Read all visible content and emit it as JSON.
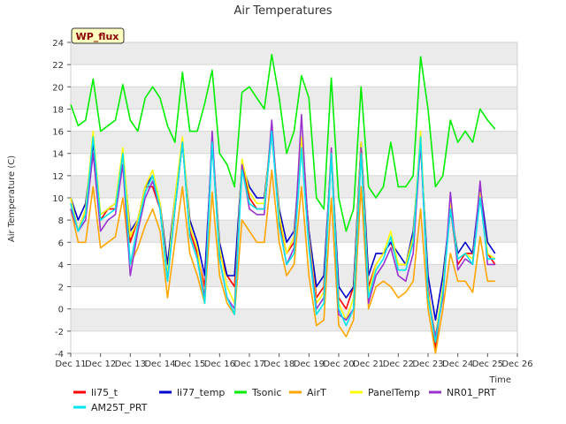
{
  "chart_data": {
    "type": "line",
    "title": "Air Temperatures",
    "xlabel": "Time",
    "ylabel": "Air Temperature (C)",
    "badge": "WP_flux",
    "ylim": [
      -4,
      24
    ],
    "yticks": [
      -4,
      -2,
      0,
      2,
      4,
      6,
      8,
      10,
      12,
      14,
      16,
      18,
      20,
      22,
      24
    ],
    "xlim": [
      11,
      26
    ],
    "xticks": [
      {
        "v": 11,
        "label": "Dec 11"
      },
      {
        "v": 12,
        "label": "Dec 12"
      },
      {
        "v": 13,
        "label": "Dec 13"
      },
      {
        "v": 14,
        "label": "Dec 14"
      },
      {
        "v": 15,
        "label": "Dec 15"
      },
      {
        "v": 16,
        "label": "Dec 16"
      },
      {
        "v": 17,
        "label": "Dec 17"
      },
      {
        "v": 18,
        "label": "Dec 18"
      },
      {
        "v": 19,
        "label": "Dec 19"
      },
      {
        "v": 20,
        "label": "Dec 20"
      },
      {
        "v": 21,
        "label": "Dec 21"
      },
      {
        "v": 22,
        "label": "Dec 22"
      },
      {
        "v": 23,
        "label": "Dec 23"
      },
      {
        "v": 24,
        "label": "Dec 24"
      },
      {
        "v": 25,
        "label": "Dec 25"
      },
      {
        "v": 26,
        "label": "Dec 26"
      }
    ],
    "grid": true,
    "legend_position": "bottom",
    "x": [
      11.0,
      11.25,
      11.5,
      11.75,
      12.0,
      12.25,
      12.5,
      12.75,
      13.0,
      13.25,
      13.5,
      13.75,
      14.0,
      14.25,
      14.5,
      14.75,
      15.0,
      15.25,
      15.5,
      15.75,
      16.0,
      16.25,
      16.5,
      16.75,
      17.0,
      17.25,
      17.5,
      17.75,
      18.0,
      18.25,
      18.5,
      18.75,
      19.0,
      19.25,
      19.5,
      19.75,
      20.0,
      20.25,
      20.5,
      20.75,
      21.0,
      21.25,
      21.5,
      21.75,
      22.0,
      22.25,
      22.5,
      22.75,
      23.0,
      23.25,
      23.5,
      23.75,
      24.0,
      24.25,
      24.5,
      24.75,
      25.0,
      25.25
    ],
    "series": [
      {
        "name": "li75_t",
        "color": "#ff0000",
        "values": [
          10.0,
          7.0,
          9.0,
          15.0,
          8.0,
          9.0,
          9.0,
          14.0,
          6.0,
          8.0,
          11.0,
          11.0,
          9.0,
          3.0,
          9.0,
          15.0,
          7.0,
          5.0,
          2.0,
          15.0,
          5.0,
          3.0,
          2.0,
          13.0,
          10.0,
          9.0,
          9.0,
          16.0,
          8.0,
          5.0,
          6.0,
          15.0,
          7.0,
          1.0,
          2.0,
          14.0,
          1.0,
          0.0,
          2.0,
          15.0,
          2.0,
          4.0,
          5.0,
          6.0,
          4.0,
          4.0,
          6.0,
          15.0,
          2.0,
          -3.5,
          2.0,
          9.0,
          4.0,
          5.0,
          5.0,
          10.0,
          5.0,
          4.0
        ]
      },
      {
        "name": "li77_temp",
        "color": "#0000cc",
        "values": [
          10.0,
          8.0,
          9.5,
          15.0,
          8.5,
          9.0,
          9.5,
          14.0,
          7.0,
          8.0,
          11.0,
          12.0,
          9.5,
          4.0,
          10.0,
          15.0,
          8.0,
          6.0,
          3.0,
          15.0,
          6.0,
          3.0,
          3.0,
          13.0,
          11.0,
          10.0,
          10.0,
          16.0,
          9.0,
          6.0,
          7.0,
          15.0,
          7.0,
          2.0,
          3.0,
          14.0,
          2.0,
          1.0,
          2.0,
          15.0,
          3.0,
          5.0,
          5.0,
          6.0,
          5.0,
          4.0,
          7.0,
          15.0,
          3.0,
          -1.0,
          3.0,
          9.0,
          5.0,
          6.0,
          5.0,
          11.0,
          6.0,
          5.0
        ]
      },
      {
        "name": "Tsonic",
        "color": "#00ee00",
        "values": [
          18.4,
          16.5,
          17.0,
          20.7,
          16.0,
          16.5,
          17.0,
          20.2,
          17.0,
          16.0,
          19.0,
          20.0,
          19.0,
          16.5,
          15.0,
          21.3,
          16.0,
          16.0,
          18.5,
          21.5,
          14.0,
          13.0,
          11.0,
          19.5,
          20.0,
          19.0,
          18.0,
          22.9,
          19.0,
          14.0,
          16.0,
          21.0,
          19.0,
          10.0,
          9.0,
          20.8,
          10.0,
          7.0,
          9.0,
          20.0,
          11.0,
          10.0,
          11.0,
          15.0,
          11.0,
          11.0,
          12.0,
          22.7,
          18.0,
          11.0,
          12.0,
          17.0,
          15.0,
          16.0,
          15.0,
          18.0,
          17.0,
          16.2
        ]
      },
      {
        "name": "AirT",
        "color": "#ffa500",
        "values": [
          9.0,
          6.0,
          6.0,
          11.0,
          5.5,
          6.0,
          6.5,
          10.0,
          4.0,
          5.5,
          7.5,
          9.0,
          7.0,
          1.0,
          6.0,
          11.0,
          5.0,
          3.0,
          0.5,
          10.5,
          3.0,
          0.5,
          -0.5,
          8.0,
          7.0,
          6.0,
          6.0,
          12.5,
          6.0,
          3.0,
          4.0,
          11.0,
          3.0,
          -1.5,
          -1.0,
          10.0,
          -1.5,
          -2.5,
          -1.0,
          11.0,
          0.0,
          2.0,
          2.5,
          2.0,
          1.0,
          1.5,
          2.5,
          9.0,
          0.0,
          -4.0,
          0.0,
          5.0,
          2.5,
          2.5,
          1.5,
          6.5,
          2.5,
          2.5
        ]
      },
      {
        "name": "PanelTemp",
        "color": "#ffff00",
        "values": [
          10.0,
          7.0,
          9.0,
          16.0,
          8.5,
          9.0,
          9.5,
          14.5,
          6.5,
          8.0,
          11.0,
          12.5,
          9.5,
          3.0,
          10.0,
          15.5,
          7.5,
          5.5,
          1.0,
          15.5,
          5.5,
          2.0,
          0.5,
          13.5,
          10.5,
          9.5,
          9.5,
          16.5,
          8.5,
          5.0,
          6.5,
          15.5,
          6.5,
          0.5,
          1.5,
          14.5,
          0.5,
          -1.0,
          1.0,
          15.0,
          1.5,
          4.0,
          5.0,
          7.0,
          4.0,
          4.0,
          6.5,
          16.0,
          1.5,
          -2.5,
          2.0,
          9.5,
          4.5,
          5.0,
          4.5,
          10.5,
          5.0,
          4.5
        ]
      },
      {
        "name": "NR01_PRT",
        "color": "#9a32cd",
        "values": [
          9.0,
          7.0,
          8.0,
          14.0,
          7.0,
          8.0,
          8.5,
          13.0,
          3.0,
          7.0,
          10.0,
          11.5,
          9.0,
          2.5,
          9.0,
          15.0,
          6.5,
          4.5,
          1.0,
          16.0,
          4.5,
          1.0,
          0.0,
          13.0,
          9.0,
          8.5,
          8.5,
          17.0,
          7.5,
          4.0,
          5.5,
          17.5,
          6.0,
          0.0,
          1.0,
          14.5,
          -0.5,
          -1.0,
          0.0,
          14.5,
          0.5,
          3.0,
          4.0,
          5.5,
          3.0,
          2.5,
          5.0,
          15.0,
          1.0,
          -2.5,
          1.0,
          10.5,
          3.5,
          4.5,
          4.0,
          11.5,
          4.0,
          4.0
        ]
      },
      {
        "name": "AM25T_PRT",
        "color": "#00e5ee",
        "values": [
          9.5,
          7.0,
          8.5,
          15.5,
          8.0,
          8.5,
          9.0,
          14.0,
          4.0,
          7.5,
          10.5,
          12.0,
          9.0,
          2.5,
          9.0,
          15.0,
          6.5,
          4.5,
          0.5,
          15.0,
          4.5,
          1.0,
          -0.5,
          12.5,
          9.5,
          9.0,
          9.0,
          16.0,
          7.5,
          4.0,
          5.0,
          14.5,
          5.5,
          -0.5,
          0.5,
          14.0,
          0.0,
          -1.5,
          0.0,
          14.0,
          1.0,
          3.5,
          4.5,
          6.5,
          3.5,
          3.5,
          6.0,
          15.5,
          1.0,
          -3.0,
          1.5,
          9.0,
          4.5,
          5.0,
          4.0,
          10.0,
          4.5,
          4.5
        ]
      }
    ]
  }
}
